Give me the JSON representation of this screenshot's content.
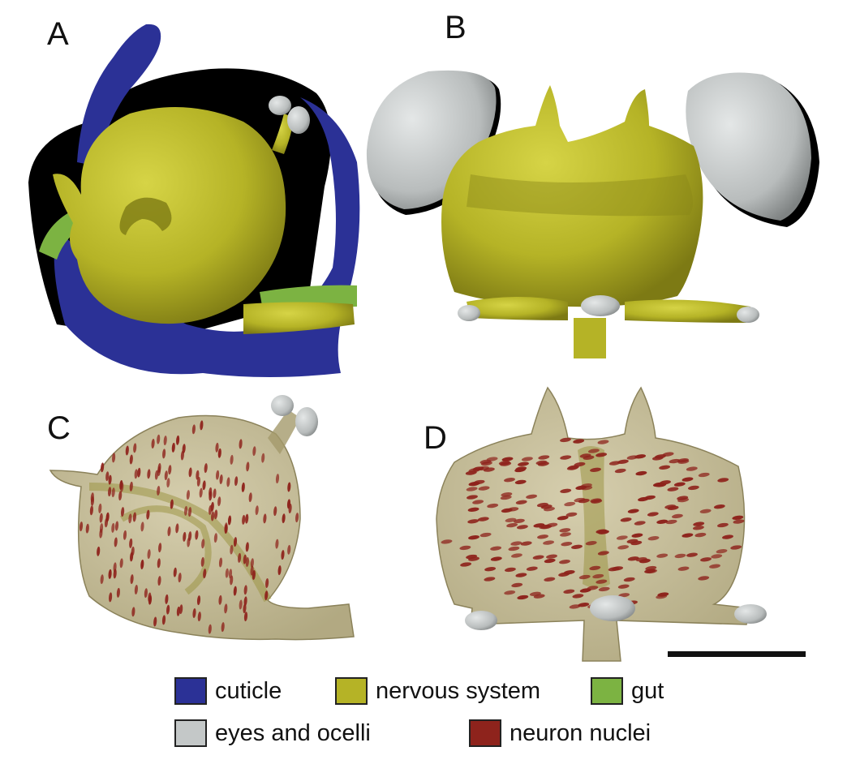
{
  "panels": [
    {
      "id": "A",
      "label": "A"
    },
    {
      "id": "B",
      "label": "B"
    },
    {
      "id": "C",
      "label": "C"
    },
    {
      "id": "D",
      "label": "D"
    }
  ],
  "legend": [
    {
      "key": "cuticle",
      "label": "cuticle",
      "color": "#2b3196"
    },
    {
      "key": "nervous-system",
      "label": "nervous system",
      "color": "#b5b326"
    },
    {
      "key": "gut",
      "label": "gut",
      "color": "#7cb342"
    },
    {
      "key": "eyes-and-ocelli",
      "label": "eyes and ocelli",
      "color": "#c4c8c8"
    },
    {
      "key": "neuron-nuclei",
      "label": "neuron nuclei",
      "color": "#8e231c"
    }
  ],
  "colors": {
    "cuticle": "#2b3196",
    "nervous_system": "#b5b326",
    "nervous_shadow": "#7d7a14",
    "gut": "#7cb342",
    "eyes": "#c4c8c8",
    "translucent": "#b8ad82",
    "nuclei": "#8e231c",
    "scale_bar": "#111111"
  }
}
